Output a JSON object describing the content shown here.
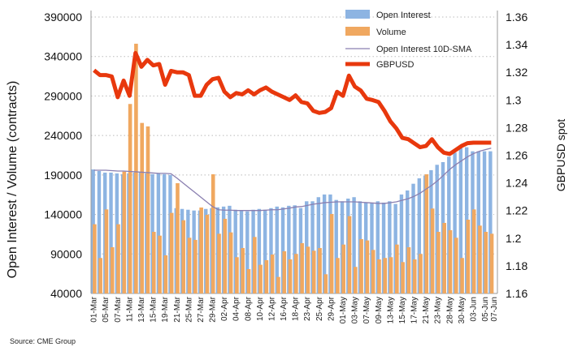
{
  "chart_data": {
    "type": "bar+line",
    "ylabel": "Open Interest / Volume (contracts)",
    "y2label": "GBPUSD spot",
    "ylim": [
      40000,
      390000
    ],
    "yticks": [
      40000,
      90000,
      140000,
      190000,
      240000,
      290000,
      340000,
      390000
    ],
    "y2lim": [
      1.16,
      1.36
    ],
    "y2ticks": [
      "1.16",
      "1.18",
      "1.2",
      "1.22",
      "1.24",
      "1.26",
      "1.28",
      "1.3",
      "1.32",
      "1.34",
      "1.36"
    ],
    "grid": "horizontal dotted",
    "legend_position": "top-right",
    "x_tick_labels": [
      "01-Mar",
      "05-Mar",
      "07-Mar",
      "11-Mar",
      "13-Mar",
      "15-Mar",
      "19-Mar",
      "21-Mar",
      "25-Mar",
      "27-Mar",
      "29-Mar",
      "02-Apr",
      "04-Apr",
      "08-Apr",
      "10-Apr",
      "12-Apr",
      "16-Apr",
      "18-Apr",
      "23-Apr",
      "25-Apr",
      "29-Apr",
      "01-May",
      "03-May",
      "07-May",
      "09-May",
      "13-May",
      "15-May",
      "17-May",
      "21-May",
      "23-May",
      "28-May",
      "30-May",
      "03-Jun",
      "05-Jun",
      "07-Jun"
    ],
    "series": [
      {
        "name": "Open Interest",
        "type": "bar",
        "color": "#8db4e2",
        "values": [
          197000,
          195000,
          193000,
          193000,
          192000,
          191000,
          192000,
          193000,
          193000,
          192000,
          191000,
          192000,
          191000,
          190000,
          148000,
          147000,
          146000,
          145000,
          145000,
          147000,
          148000,
          149000,
          150000,
          151000,
          146000,
          145000,
          144000,
          146000,
          147000,
          146000,
          148000,
          150000,
          149000,
          151000,
          151600,
          148100,
          156700,
          156700,
          161900,
          165300,
          165300,
          158400,
          156700,
          160100,
          161900,
          156700,
          155000,
          155000,
          156700,
          155000,
          156700,
          153300,
          165300,
          170400,
          178900,
          185800,
          189200,
          196100,
          202900,
          206300,
          213200,
          218300,
          226900,
          225100,
          220000,
          220000,
          220000,
          220000
        ]
      },
      {
        "name": "Volume",
        "type": "bar",
        "color": "#f0a860",
        "values": [
          127600,
          84900,
          146400,
          98500,
          127600,
          194300,
          279900,
          356200,
          255900,
          251500,
          118000,
          113200,
          88300,
          142000,
          179600,
          132700,
          110500,
          107800,
          148800,
          139600,
          190900,
          115600,
          134500,
          117300,
          85900,
          97500,
          70800,
          111500,
          76300,
          82100,
          89300,
          60900,
          93400,
          83100,
          90000,
          103700,
          99200,
          94100,
          97500,
          64300,
          140600,
          84900,
          101900,
          137900,
          73600,
          108800,
          107100,
          95100,
          83100,
          84900,
          85900,
          101900,
          79700,
          98500,
          83100,
          90000,
          190900,
          147500,
          118000,
          129300,
          120100,
          110500,
          84900,
          133400,
          146400,
          125900,
          118000,
          115600
        ]
      },
      {
        "name": "Open Interest 10D-SMA",
        "type": "line",
        "color": "#8a7fb0",
        "values": [
          196000,
          196000,
          196000,
          195500,
          195000,
          195000,
          194500,
          194000,
          193500,
          193000,
          192500,
          192000,
          192000,
          191500,
          186000,
          180000,
          174000,
          168000,
          162000,
          156000,
          150000,
          146000,
          145500,
          145500,
          145000,
          145000,
          145000,
          145000,
          145000,
          145500,
          146000,
          146000,
          147000,
          148000,
          149500,
          150000,
          151500,
          153000,
          154000,
          155000,
          155500,
          156000,
          156000,
          156000,
          156000,
          155500,
          155000,
          154500,
          154000,
          154000,
          155000,
          156000,
          158000,
          160000,
          163000,
          167000,
          172000,
          177000,
          183000,
          190000,
          197000,
          203000,
          208000,
          213000,
          217000,
          220000,
          222000,
          224000
        ]
      },
      {
        "name": "GBPUSD",
        "type": "line",
        "axis": "right",
        "color": "#e8380d",
        "values": [
          1.3215,
          1.318,
          1.318,
          1.317,
          1.302,
          1.314,
          1.303,
          1.334,
          1.324,
          1.329,
          1.325,
          1.326,
          1.311,
          1.321,
          1.32,
          1.32,
          1.318,
          1.303,
          1.303,
          1.311,
          1.315,
          1.316,
          1.306,
          1.302,
          1.305,
          1.304,
          1.307,
          1.304,
          1.307,
          1.309,
          1.306,
          1.304,
          1.302,
          1.3,
          1.3033,
          1.2985,
          1.2975,
          1.2921,
          1.2906,
          1.2913,
          1.2941,
          1.3059,
          1.303,
          1.3176,
          1.3097,
          1.3068,
          1.3009,
          1.2999,
          1.2985,
          1.2921,
          1.2845,
          1.2794,
          1.2726,
          1.2716,
          1.2687,
          1.2658,
          1.2667,
          1.2716,
          1.2658,
          1.2619,
          1.2609,
          1.2638,
          1.2667,
          1.2687,
          1.2691,
          1.2691,
          1.2691,
          1.2691
        ]
      }
    ]
  },
  "source": "Source: CME Group"
}
